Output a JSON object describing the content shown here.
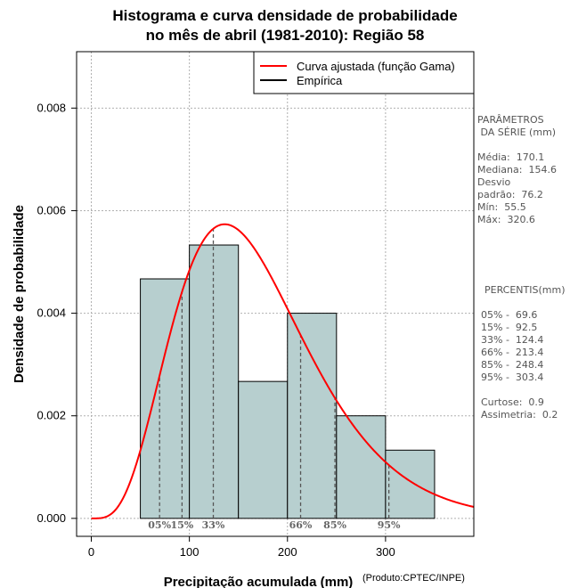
{
  "chart_data": {
    "type": "bar",
    "title_line1": "Histograma e curva densidade de probabilidade",
    "title_line2": "no mês de abril (1981-2010): Região 58",
    "xlabel": "Precipitação acumulada (mm)",
    "ylabel": "Densidade de probabilidade",
    "credit": "(Produto:CPTEC/INPE)",
    "xlim": [
      -15,
      390
    ],
    "ylim": [
      -0.00035,
      0.0091
    ],
    "x_ticks": [
      0,
      100,
      200,
      300
    ],
    "y_ticks": [
      0.0,
      0.002,
      0.004,
      0.006,
      0.008
    ],
    "y_tick_labels": [
      "0.000",
      "0.002",
      "0.004",
      "0.006",
      "0.008"
    ],
    "grid": true,
    "bins": [
      {
        "x0": 50,
        "x1": 100,
        "density": 0.00467
      },
      {
        "x0": 100,
        "x1": 150,
        "density": 0.00533
      },
      {
        "x0": 150,
        "x1": 200,
        "density": 0.00267
      },
      {
        "x0": 200,
        "x1": 250,
        "density": 0.004
      },
      {
        "x0": 250,
        "x1": 300,
        "density": 0.002
      },
      {
        "x0": 300,
        "x1": 350,
        "density": 0.00133
      }
    ],
    "bar_color": "#b7cfcf",
    "curve_color": "#ff0000",
    "gamma_fit": {
      "mean": 170.1,
      "sd": 76.2
    },
    "percentile_lines": [
      {
        "label": "05%",
        "x": 69.6
      },
      {
        "label": "15%",
        "x": 92.5
      },
      {
        "label": "33%",
        "x": 124.4
      },
      {
        "label": "66%",
        "x": 213.4
      },
      {
        "label": "85%",
        "x": 248.4
      },
      {
        "label": "95%",
        "x": 303.4
      }
    ],
    "legend": [
      {
        "label": "Curva ajustada (função Gama)",
        "color": "#ff0000"
      },
      {
        "label": "Empírica",
        "color": "#000000"
      }
    ],
    "legend_position": "top-right"
  },
  "stats_panel": {
    "params_title_1": "PARÂMETROS",
    "params_title_2": " DA SÉRIE (mm)",
    "media": "Média:  170.1",
    "mediana": "Mediana:  154.6",
    "desvio_1": "Desvio",
    "desvio_2": "padrão:  76.2",
    "min": "Mín:  55.5",
    "max": "Máx:  320.6",
    "percentis_title": "PERCENTIS(mm)",
    "p05": "05% -  69.6",
    "p15": "15% -  92.5",
    "p33": "33% -  124.4",
    "p66": "66% -  213.4",
    "p85": "85% -  248.4",
    "p95": "95% -  303.4",
    "curtose": "Curtose:  0.9",
    "assimetria": "Assimetria:  0.2"
  }
}
